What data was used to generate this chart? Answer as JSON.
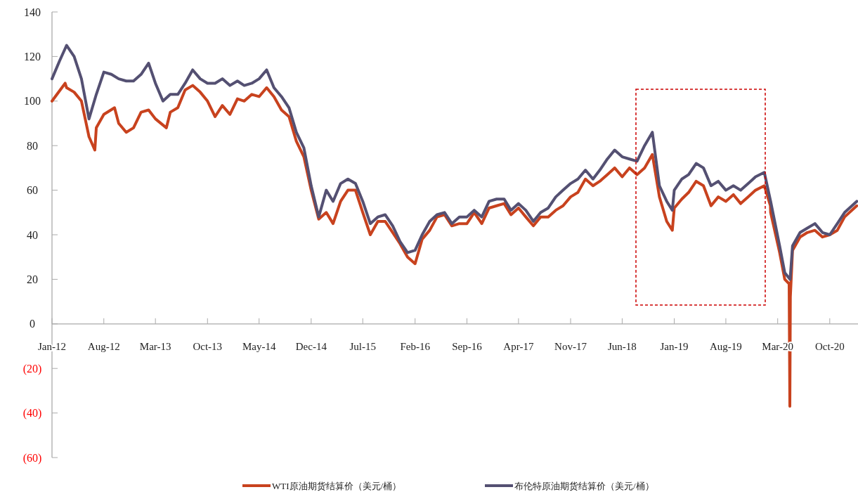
{
  "chart_data": {
    "type": "line",
    "xlim": [
      "2012-01-01",
      "2021-01-25"
    ],
    "xticks": [
      {
        "value": "2012-01",
        "label": "Jan-12"
      },
      {
        "value": "2012-08",
        "label": "Aug-12"
      },
      {
        "value": "2013-03",
        "label": "Mar-13"
      },
      {
        "value": "2013-10",
        "label": "Oct-13"
      },
      {
        "value": "2014-05",
        "label": "May-14"
      },
      {
        "value": "2014-12",
        "label": "Dec-14"
      },
      {
        "value": "2015-07",
        "label": "Jul-15"
      },
      {
        "value": "2016-02",
        "label": "Feb-16"
      },
      {
        "value": "2016-09",
        "label": "Sep-16"
      },
      {
        "value": "2017-04",
        "label": "Apr-17"
      },
      {
        "value": "2017-11",
        "label": "Nov-17"
      },
      {
        "value": "2018-06",
        "label": "Jun-18"
      },
      {
        "value": "2019-01",
        "label": "Jan-19"
      },
      {
        "value": "2019-08",
        "label": "Aug-19"
      },
      {
        "value": "2020-03",
        "label": "Mar-20"
      },
      {
        "value": "2020-10",
        "label": "Oct-20"
      }
    ],
    "ylim": [
      -60,
      140
    ],
    "yticks": [
      {
        "value": -60,
        "label": "(60)"
      },
      {
        "value": -40,
        "label": "(40)"
      },
      {
        "value": -20,
        "label": "(20)"
      },
      0,
      20,
      40,
      60,
      80,
      100,
      120,
      140
    ],
    "grid": false,
    "legend": "bottom",
    "series": [
      {
        "name": "WTI原油期货结算价（美元/桶）",
        "color": "#c8421e",
        "x": [
          "2012-01",
          "2012-02-24",
          "2012-03",
          "2012-04",
          "2012-05",
          "2012-06",
          "2012-06-25",
          "2012-07",
          "2012-08",
          "2012-09-14",
          "2012-10",
          "2012-11",
          "2012-12",
          "2013-01",
          "2013-02",
          "2013-03",
          "2013-04-15",
          "2013-05",
          "2013-06",
          "2013-07",
          "2013-08",
          "2013-09",
          "2013-10",
          "2013-11",
          "2013-12",
          "2014-01",
          "2014-02",
          "2014-03",
          "2014-04",
          "2014-05",
          "2014-06",
          "2014-07",
          "2014-08",
          "2014-09",
          "2014-10",
          "2014-11",
          "2014-12",
          "2015-01",
          "2015-02",
          "2015-03",
          "2015-04",
          "2015-05",
          "2015-06",
          "2015-07",
          "2015-08",
          "2015-09",
          "2015-10",
          "2015-11",
          "2015-12",
          "2016-01",
          "2016-02",
          "2016-03",
          "2016-04",
          "2016-05",
          "2016-06",
          "2016-07",
          "2016-08",
          "2016-09",
          "2016-10",
          "2016-11",
          "2016-12",
          "2017-01",
          "2017-02",
          "2017-03",
          "2017-04",
          "2017-05",
          "2017-06",
          "2017-07",
          "2017-08",
          "2017-09",
          "2017-10",
          "2017-11",
          "2017-12",
          "2018-01",
          "2018-02",
          "2018-03",
          "2018-04",
          "2018-05",
          "2018-06",
          "2018-07",
          "2018-08",
          "2018-09",
          "2018-10-03",
          "2018-11",
          "2018-12",
          "2018-12-24",
          "2019-01",
          "2019-02",
          "2019-03",
          "2019-04",
          "2019-05",
          "2019-06",
          "2019-07",
          "2019-08",
          "2019-09",
          "2019-10",
          "2019-11",
          "2019-12",
          "2020-01-06",
          "2020-01-31",
          "2020-02",
          "2020-03-09",
          "2020-03-30",
          "2020-04-17",
          "2020-04-20",
          "2020-04-22",
          "2020-05",
          "2020-06",
          "2020-07",
          "2020-08",
          "2020-09",
          "2020-10",
          "2020-11",
          "2020-12",
          "2021-01-20"
        ],
        "values": [
          100,
          108,
          106,
          104,
          100,
          84,
          78,
          88,
          94,
          97,
          90,
          86,
          88,
          95,
          96,
          92,
          88,
          95,
          97,
          105,
          107,
          104,
          100,
          93,
          98,
          94,
          101,
          100,
          103,
          102,
          106,
          102,
          96,
          93,
          82,
          75,
          60,
          47,
          50,
          45,
          55,
          60,
          60,
          50,
          40,
          46,
          46,
          41,
          36,
          30,
          27,
          38,
          42,
          48,
          49,
          44,
          45,
          45,
          50,
          45,
          52,
          53,
          54,
          49,
          52,
          48,
          44,
          48,
          48,
          51,
          53,
          57,
          59,
          65,
          62,
          64,
          67,
          70,
          66,
          70,
          67,
          70,
          76,
          57,
          46,
          42,
          52,
          56,
          59,
          64,
          62,
          53,
          57,
          55,
          58,
          54,
          57,
          60,
          62,
          53,
          50,
          32,
          20,
          18,
          -37,
          12,
          33,
          39,
          41,
          42,
          39,
          40,
          42,
          48,
          53
        ]
      },
      {
        "name": "布伦特原油期货结算价（美元/桶）",
        "color": "#545072",
        "x": [
          "2012-01",
          "2012-02",
          "2012-03",
          "2012-04",
          "2012-05",
          "2012-06",
          "2012-07",
          "2012-08",
          "2012-09",
          "2012-10",
          "2012-11",
          "2012-12",
          "2013-01",
          "2013-02",
          "2013-03",
          "2013-04",
          "2013-05",
          "2013-06",
          "2013-07",
          "2013-08",
          "2013-09",
          "2013-10",
          "2013-11",
          "2013-12",
          "2014-01",
          "2014-02",
          "2014-03",
          "2014-04",
          "2014-05",
          "2014-06",
          "2014-07",
          "2014-08",
          "2014-09",
          "2014-10",
          "2014-11",
          "2014-12",
          "2015-01",
          "2015-02",
          "2015-03",
          "2015-04",
          "2015-05",
          "2015-06",
          "2015-07",
          "2015-08",
          "2015-09",
          "2015-10",
          "2015-11",
          "2015-12",
          "2016-01",
          "2016-02",
          "2016-03",
          "2016-04",
          "2016-05",
          "2016-06",
          "2016-07",
          "2016-08",
          "2016-09",
          "2016-10",
          "2016-11",
          "2016-12",
          "2017-01",
          "2017-02",
          "2017-03",
          "2017-04",
          "2017-05",
          "2017-06",
          "2017-07",
          "2017-08",
          "2017-09",
          "2017-10",
          "2017-11",
          "2017-12",
          "2018-01",
          "2018-02",
          "2018-03",
          "2018-04",
          "2018-05",
          "2018-06",
          "2018-07",
          "2018-08",
          "2018-09",
          "2018-10-03",
          "2018-11",
          "2018-12",
          "2018-12-24",
          "2019-01",
          "2019-02",
          "2019-03",
          "2019-04",
          "2019-05",
          "2019-06",
          "2019-07",
          "2019-08",
          "2019-09",
          "2019-10",
          "2019-11",
          "2019-12",
          "2020-01-06",
          "2020-02",
          "2020-03-09",
          "2020-03-30",
          "2020-04-21",
          "2020-05",
          "2020-06",
          "2020-07",
          "2020-08",
          "2020-09",
          "2020-10",
          "2020-11",
          "2020-12",
          "2021-01-20"
        ],
        "values": [
          110,
          118,
          125,
          120,
          110,
          92,
          103,
          113,
          112,
          110,
          109,
          109,
          112,
          117,
          108,
          100,
          103,
          103,
          108,
          114,
          110,
          108,
          108,
          110,
          107,
          109,
          107,
          108,
          110,
          114,
          106,
          102,
          97,
          86,
          79,
          62,
          48,
          60,
          55,
          63,
          65,
          63,
          55,
          45,
          48,
          49,
          44,
          37,
          32,
          33,
          40,
          46,
          49,
          50,
          45,
          48,
          48,
          51,
          48,
          55,
          56,
          56,
          51,
          54,
          51,
          46,
          50,
          52,
          57,
          60,
          63,
          65,
          69,
          65,
          69,
          74,
          78,
          75,
          74,
          73,
          80,
          86,
          62,
          55,
          51,
          60,
          65,
          67,
          72,
          70,
          62,
          64,
          60,
          62,
          60,
          63,
          66,
          68,
          55,
          35,
          23,
          20,
          35,
          41,
          43,
          45,
          41,
          40,
          45,
          50,
          55
        ]
      }
    ]
  }
}
